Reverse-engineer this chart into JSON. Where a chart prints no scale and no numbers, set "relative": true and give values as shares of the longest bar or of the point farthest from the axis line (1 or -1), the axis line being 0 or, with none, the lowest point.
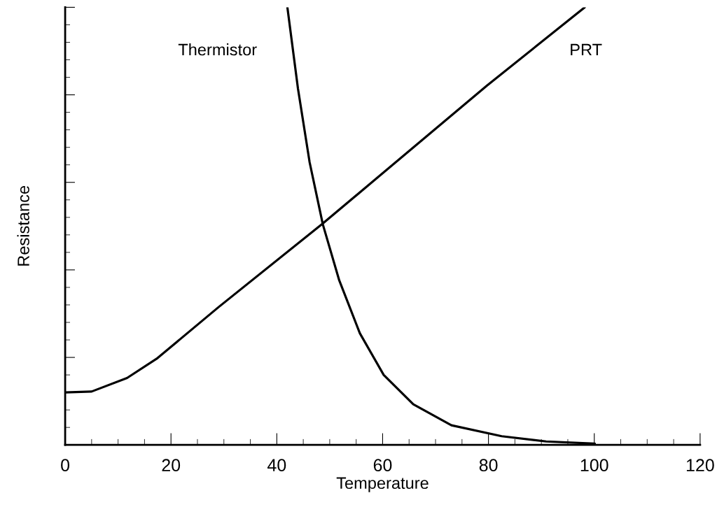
{
  "chart_data": {
    "type": "line",
    "xlabel": "Temperature",
    "ylabel": "Resistance",
    "relative": true,
    "xlim": [
      0,
      120
    ],
    "xticks": [
      0,
      20,
      40,
      60,
      80,
      100,
      120
    ],
    "grid": false,
    "legend": false,
    "marker": "none",
    "line_style": "solid",
    "series": [
      {
        "name": "Thermistor",
        "color": "#000000",
        "x": [
          42.0,
          44.0,
          46.2,
          48.7,
          51.8,
          55.7,
          60.2,
          65.8,
          73.0,
          82.5,
          90.9,
          100.1
        ],
        "values": [
          1.0,
          0.814,
          0.646,
          0.504,
          0.376,
          0.255,
          0.16,
          0.093,
          0.045,
          0.02,
          0.008,
          0.003
        ]
      },
      {
        "name": "PRT",
        "color": "#000000",
        "x": [
          0,
          5.0,
          11.7,
          17.3,
          29.0,
          48.5,
          79.7,
          98.2
        ],
        "values": [
          0.12,
          0.122,
          0.153,
          0.197,
          0.315,
          0.504,
          0.821,
          1.0
        ]
      }
    ]
  }
}
